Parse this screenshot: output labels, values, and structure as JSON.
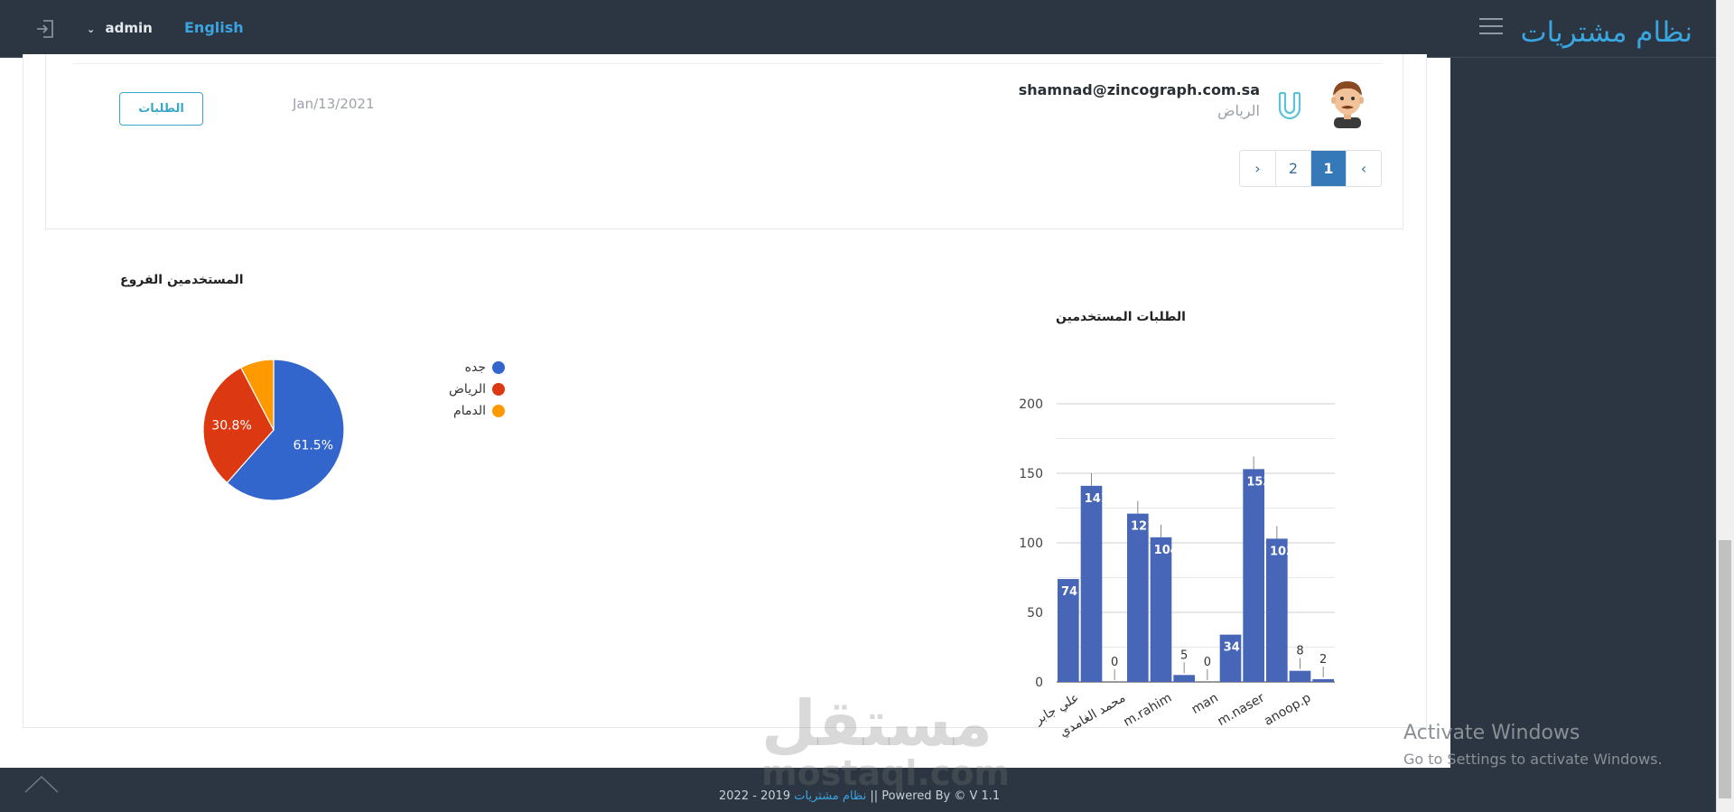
{
  "header": {
    "brand": "نظام مشتريات",
    "user": "admin",
    "language": "English"
  },
  "user_row": {
    "email": "shamnad@zincograph.com.sa",
    "city": "الرياض",
    "date": "Jan/13/2021",
    "orders_button": "الطلبات"
  },
  "pagination": {
    "prev": "‹",
    "pages": [
      "1",
      "2"
    ],
    "next": "›",
    "active": "1"
  },
  "pie": {
    "title": "المستخدمين الفروع",
    "legend": [
      "جده",
      "الرياض",
      "الدمام"
    ],
    "colors": [
      "#3366cc",
      "#dc3912",
      "#ff9900"
    ]
  },
  "bar": {
    "title": "الطلبات المستخدمين",
    "color": "#4766b8"
  },
  "chart_data": [
    {
      "type": "pie",
      "title": "المستخدمين الفروع",
      "labels": [
        "جده",
        "الرياض",
        "الدمام"
      ],
      "values": [
        61.5,
        30.8,
        7.7
      ],
      "slice_labels": [
        "61.5%",
        "30.8%",
        ""
      ],
      "legend": "right"
    },
    {
      "type": "bar",
      "title": "الطلبات المستخدمين",
      "values": [
        74,
        141,
        0,
        121,
        104,
        5,
        0,
        34,
        153,
        103,
        8,
        2
      ],
      "x_tick_labels": [
        "علي جابر",
        "محمد الغامدي",
        "m.rahim",
        "man",
        "m.naser",
        "anoop.p"
      ],
      "y_ticks": [
        "0",
        "50",
        "100",
        "150",
        "200"
      ],
      "ylim": [
        0,
        200
      ],
      "grid": true
    }
  ],
  "footer": {
    "version_text": "2019 - 2022 || Powered By © V 1.1",
    "brand": "نظام مشتريات"
  },
  "watermark": {
    "arabic": "مستقل",
    "latin": "mostaql.com"
  },
  "activation": {
    "title": "Activate Windows",
    "subtitle": "Go to Settings to activate Windows."
  }
}
